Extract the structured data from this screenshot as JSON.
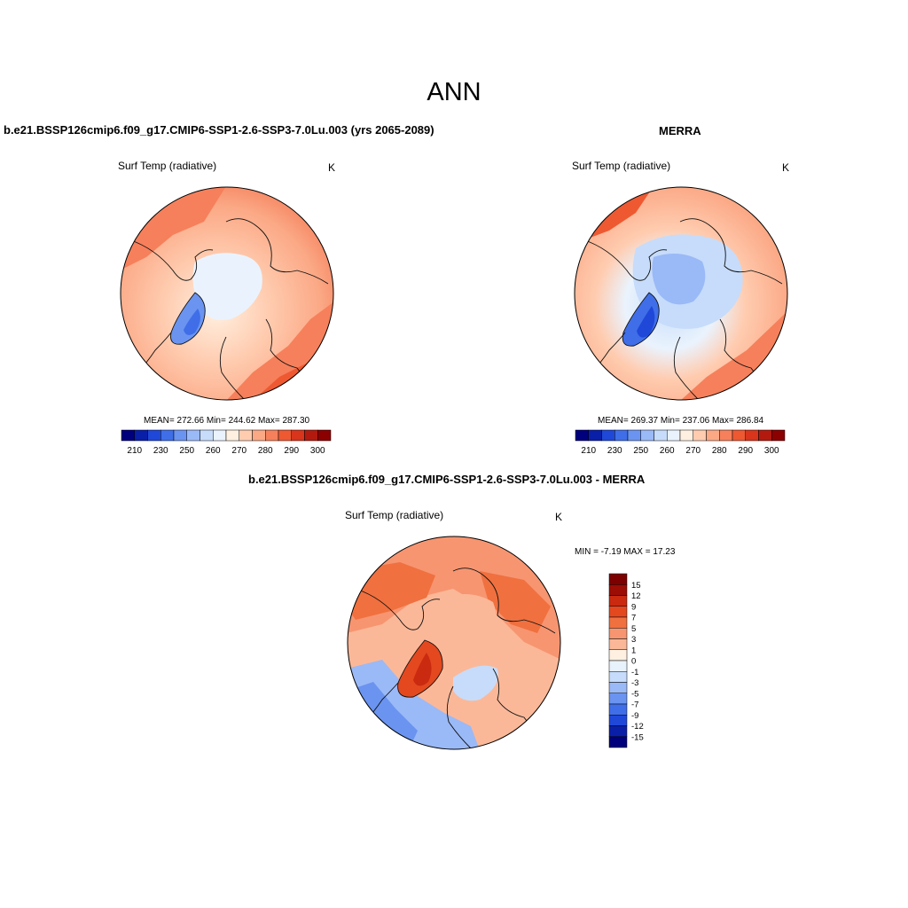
{
  "title": "ANN",
  "colors": {
    "abs_scale": [
      "#00007d",
      "#0a1fa8",
      "#1f48d9",
      "#3f6ee8",
      "#6a94f0",
      "#9ab9f7",
      "#c6dcfa",
      "#eaf3fd",
      "#fff0e1",
      "#ffccb0",
      "#fba885",
      "#f6805b",
      "#ee5932",
      "#d8351c",
      "#b31a0f",
      "#8b0000"
    ],
    "diff_scale": [
      "#00007d",
      "#0a1fa8",
      "#1f48d9",
      "#3f6ee8",
      "#6a94f0",
      "#9ab9f7",
      "#c6dcfa",
      "#e8f2fd",
      "#fff0e1",
      "#fbb898",
      "#f79571",
      "#f0703f",
      "#e4481f",
      "#c92a10",
      "#9c0d05",
      "#7d0000"
    ],
    "coastline": "#111111"
  },
  "panels": [
    {
      "id": "model",
      "title": "b.e21.BSSP126cmip6.f09_g17.CMIP6-SSP1-2.6-SSP3-7.0Lu.003 (yrs 2065-2089)",
      "variable": "Surf Temp (radiative)",
      "units": "K",
      "stats": "MEAN= 272.66  Min= 244.62  Max= 287.30",
      "colorbar_ticks": [
        "210",
        "230",
        "250",
        "260",
        "270",
        "280",
        "290",
        "300"
      ]
    },
    {
      "id": "obs",
      "title": "MERRA",
      "variable": "Surf Temp (radiative)",
      "units": "K",
      "stats": "MEAN= 269.37  Min= 237.06  Max= 286.84",
      "colorbar_ticks": [
        "210",
        "230",
        "250",
        "260",
        "270",
        "280",
        "290",
        "300"
      ]
    },
    {
      "id": "diff",
      "title": "b.e21.BSSP126cmip6.f09_g17.CMIP6-SSP1-2.6-SSP3-7.0Lu.003 - MERRA",
      "variable": "Surf Temp (radiative)",
      "units": "K",
      "stats": "MIN =  -7.19 MAX =  17.23",
      "colorbar_ticks": [
        "15",
        "12",
        "9",
        "7",
        "5",
        "3",
        "1",
        "0",
        "-1",
        "-3",
        "-5",
        "-7",
        "-9",
        "-12",
        "-15"
      ]
    }
  ]
}
